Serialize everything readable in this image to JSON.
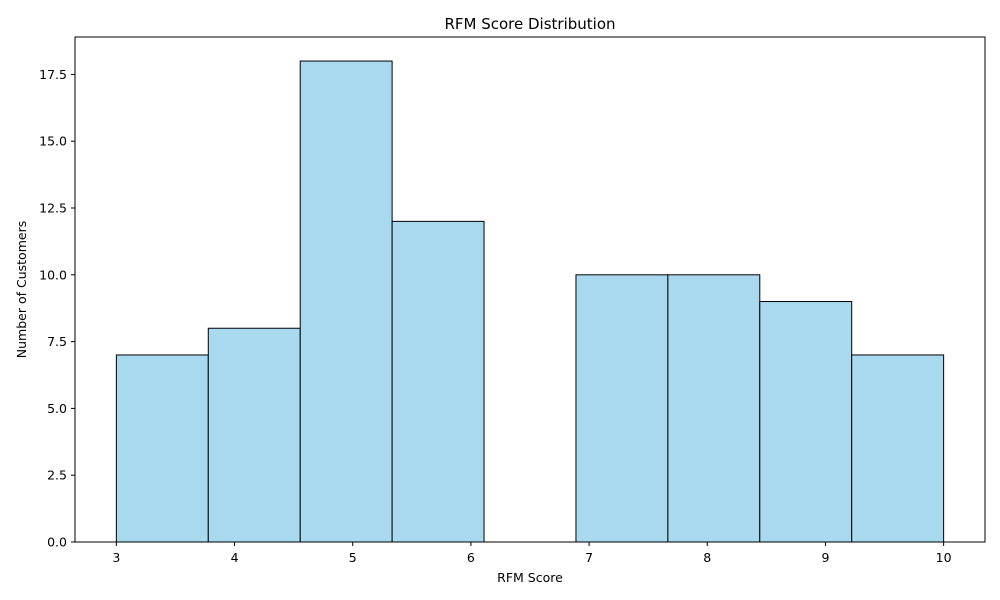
{
  "chart_data": {
    "type": "bar",
    "title": "RFM Score Distribution",
    "xlabel": "RFM Score",
    "ylabel": "Number of Customers",
    "bin_range": [
      3,
      10
    ],
    "bins": [
      {
        "x_start": 3.0,
        "x_end": 3.7778,
        "count": 7
      },
      {
        "x_start": 3.7778,
        "x_end": 4.5556,
        "count": 8
      },
      {
        "x_start": 4.5556,
        "x_end": 5.3333,
        "count": 18
      },
      {
        "x_start": 5.3333,
        "x_end": 6.1111,
        "count": 12
      },
      {
        "x_start": 6.1111,
        "x_end": 6.8889,
        "count": 0
      },
      {
        "x_start": 6.8889,
        "x_end": 7.6667,
        "count": 10
      },
      {
        "x_start": 7.6667,
        "x_end": 8.4444,
        "count": 10
      },
      {
        "x_start": 8.4444,
        "x_end": 9.2222,
        "count": 9
      },
      {
        "x_start": 9.2222,
        "x_end": 10.0,
        "count": 7
      }
    ],
    "x_ticks": [
      3,
      4,
      5,
      6,
      7,
      8,
      9,
      10
    ],
    "y_ticks": [
      "0.0",
      "2.5",
      "5.0",
      "7.5",
      "10.0",
      "12.5",
      "15.0",
      "17.5"
    ],
    "xlim": [
      2.65,
      10.35
    ],
    "ylim": [
      0,
      18.9
    ],
    "grid": false,
    "bar_color": "#a8d9ef",
    "edge_color": "#000000"
  }
}
